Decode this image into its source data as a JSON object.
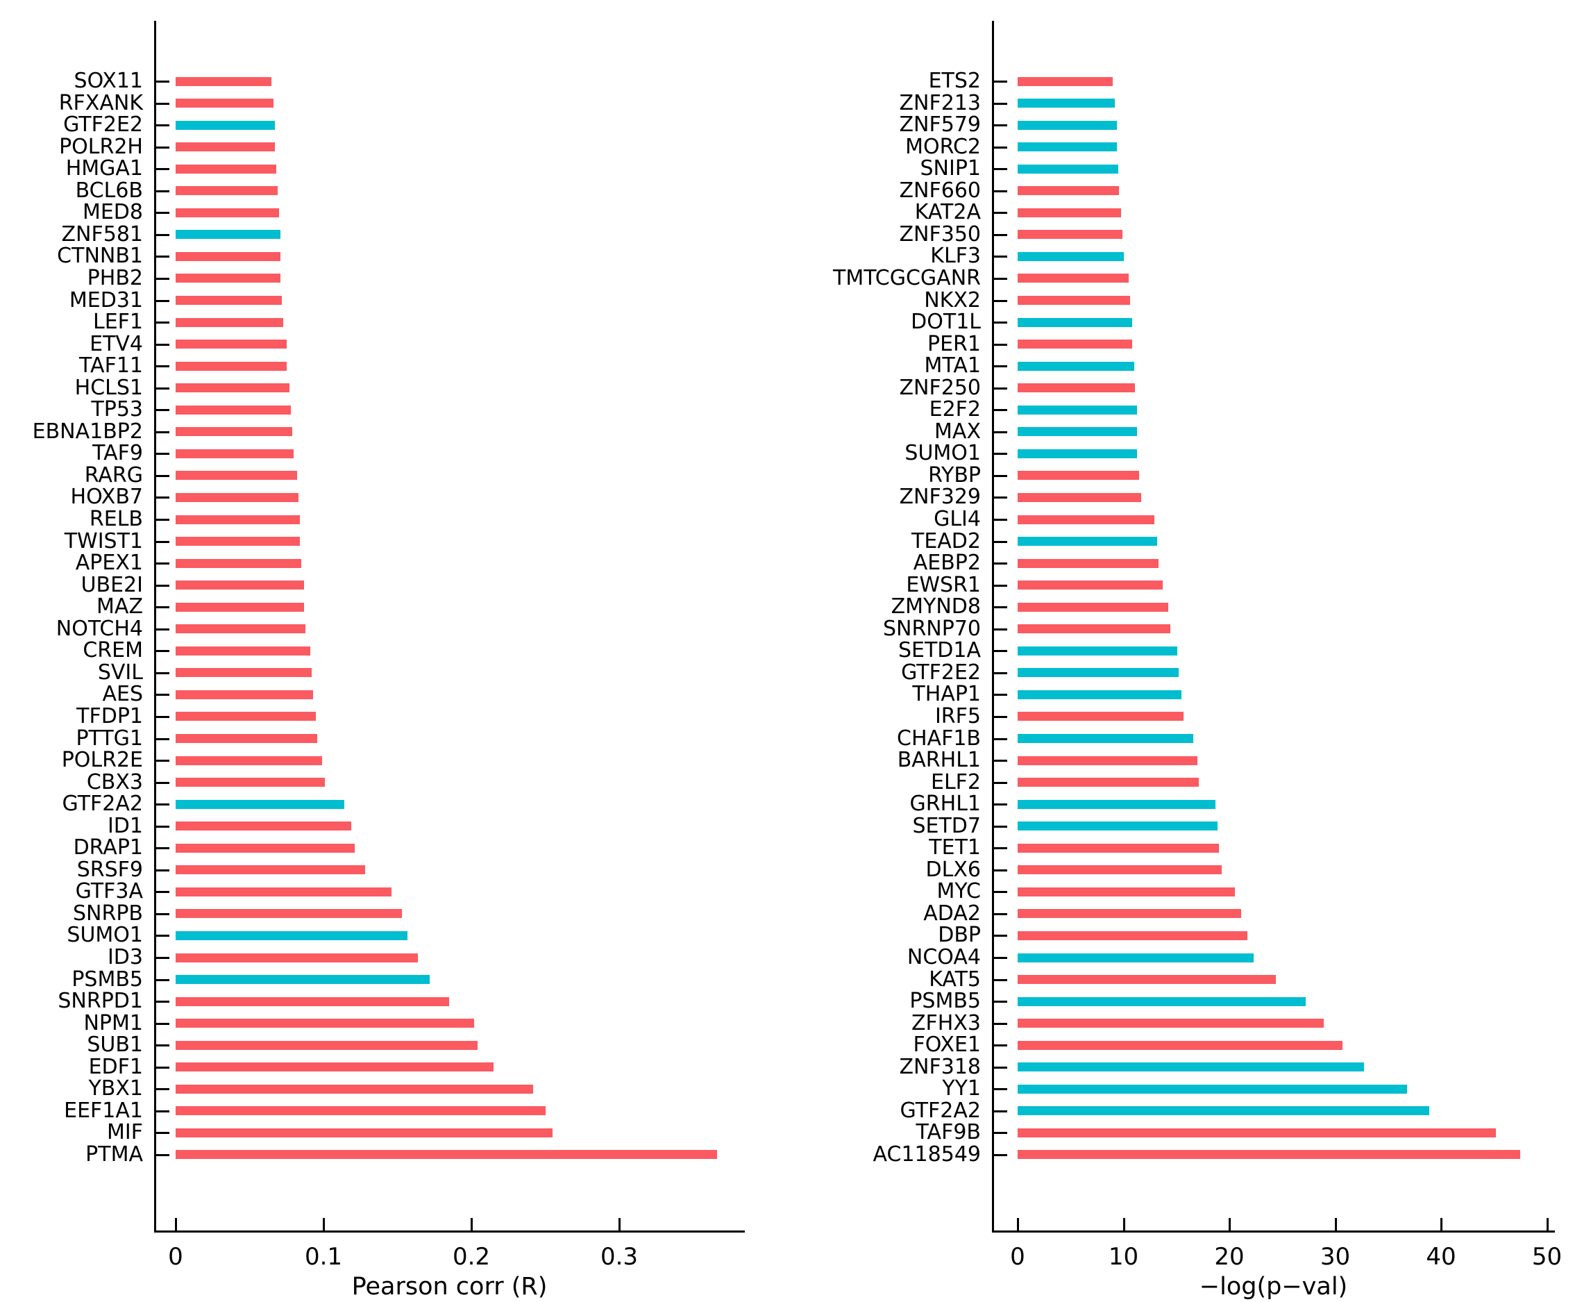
{
  "figure": {
    "background": "#ffffff",
    "palette": {
      "default_bar": "#FB5A61",
      "highlight_bar": "#00BDCF",
      "axis": "#000000",
      "text": "#000000"
    }
  },
  "chart_data": [
    {
      "type": "bar",
      "orientation": "horizontal",
      "title": "",
      "xlabel": "Pearson corr (R)",
      "ylabel": "",
      "grid": false,
      "legend": null,
      "xtick_labels": [
        "0",
        "0.1",
        "0.2",
        "0.3"
      ],
      "xtick_values": [
        0,
        0.1,
        0.2,
        0.3
      ],
      "xlim": [
        -0.015,
        0.385
      ],
      "categories": [
        "SOX11",
        "RFXANK",
        "GTF2E2",
        "POLR2H",
        "HMGA1",
        "BCL6B",
        "MED8",
        "ZNF581",
        "CTNNB1",
        "PHB2",
        "MED31",
        "LEF1",
        "ETV4",
        "TAF11",
        "HCLS1",
        "TP53",
        "EBNA1BP2",
        "TAF9",
        "RARG",
        "HOXB7",
        "RELB",
        "TWIST1",
        "APEX1",
        "UBE2I",
        "MAZ",
        "NOTCH4",
        "CREM",
        "SVIL",
        "AES",
        "TFDP1",
        "PTTG1",
        "POLR2E",
        "CBX3",
        "GTF2A2",
        "ID1",
        "DRAP1",
        "SRSF9",
        "GTF3A",
        "SNRPB",
        "SUMO1",
        "ID3",
        "PSMB5",
        "SNRPD1",
        "NPM1",
        "SUB1",
        "EDF1",
        "YBX1",
        "EEF1A1",
        "MIF",
        "PTMA"
      ],
      "values": [
        0.065,
        0.066,
        0.067,
        0.067,
        0.068,
        0.069,
        0.07,
        0.071,
        0.071,
        0.071,
        0.072,
        0.073,
        0.075,
        0.075,
        0.077,
        0.078,
        0.079,
        0.08,
        0.082,
        0.083,
        0.084,
        0.084,
        0.085,
        0.087,
        0.087,
        0.088,
        0.091,
        0.092,
        0.093,
        0.095,
        0.096,
        0.099,
        0.101,
        0.114,
        0.119,
        0.121,
        0.128,
        0.146,
        0.153,
        0.157,
        0.164,
        0.172,
        0.185,
        0.202,
        0.204,
        0.215,
        0.242,
        0.25,
        0.255,
        0.366
      ],
      "bar_colors": [
        "red",
        "red",
        "cyan",
        "red",
        "red",
        "red",
        "red",
        "cyan",
        "red",
        "red",
        "red",
        "red",
        "red",
        "red",
        "red",
        "red",
        "red",
        "red",
        "red",
        "red",
        "red",
        "red",
        "red",
        "red",
        "red",
        "red",
        "red",
        "red",
        "red",
        "red",
        "red",
        "red",
        "red",
        "cyan",
        "red",
        "red",
        "red",
        "red",
        "red",
        "cyan",
        "red",
        "cyan",
        "red",
        "red",
        "red",
        "red",
        "red",
        "red",
        "red",
        "red"
      ]
    },
    {
      "type": "bar",
      "orientation": "horizontal",
      "title": "",
      "xlabel": "−log(p−val)",
      "ylabel": "",
      "grid": false,
      "legend": null,
      "xtick_labels": [
        "0",
        "10",
        "20",
        "30",
        "40",
        "50"
      ],
      "xtick_values": [
        0,
        10,
        20,
        30,
        40,
        50
      ],
      "xlim": [
        -2.4,
        51
      ],
      "categories": [
        "ETS2",
        "ZNF213",
        "ZNF579",
        "MORC2",
        "SNIP1",
        "ZNF660",
        "KAT2A",
        "ZNF350",
        "KLF3",
        "TMTCGCGANR",
        "NKX2",
        "DOT1L",
        "PER1",
        "MTA1",
        "ZNF250",
        "E2F2",
        "MAX",
        "SUMO1",
        "RYBP",
        "ZNF329",
        "GLI4",
        "TEAD2",
        "AEBP2",
        "EWSR1",
        "ZMYND8",
        "SNRNP70",
        "SETD1A",
        "GTF2E2",
        "THAP1",
        "IRF5",
        "CHAF1B",
        "BARHL1",
        "ELF2",
        "GRHL1",
        "SETD7",
        "TET1",
        "DLX6",
        "MYC",
        "ADA2",
        "DBP",
        "NCOA4",
        "KAT5",
        "PSMB5",
        "ZFHX3",
        "FOXE1",
        "ZNF318",
        "YY1",
        "GTF2A2",
        "TAF9B",
        "AC118549"
      ],
      "values": [
        9.0,
        9.2,
        9.4,
        9.4,
        9.5,
        9.6,
        9.8,
        9.9,
        10.0,
        10.5,
        10.6,
        10.8,
        10.8,
        11.0,
        11.1,
        11.3,
        11.3,
        11.3,
        11.5,
        11.7,
        12.9,
        13.2,
        13.3,
        13.7,
        14.2,
        14.4,
        15.1,
        15.2,
        15.5,
        15.7,
        16.6,
        17.0,
        17.1,
        18.7,
        18.9,
        19.0,
        19.3,
        20.5,
        21.1,
        21.7,
        22.3,
        24.4,
        27.2,
        28.9,
        30.7,
        32.7,
        36.8,
        38.9,
        45.2,
        47.5
      ],
      "bar_colors": [
        "red",
        "cyan",
        "cyan",
        "cyan",
        "cyan",
        "red",
        "red",
        "red",
        "cyan",
        "red",
        "red",
        "cyan",
        "red",
        "cyan",
        "red",
        "cyan",
        "cyan",
        "cyan",
        "red",
        "red",
        "red",
        "cyan",
        "red",
        "red",
        "red",
        "red",
        "cyan",
        "cyan",
        "cyan",
        "red",
        "cyan",
        "red",
        "red",
        "cyan",
        "cyan",
        "red",
        "red",
        "red",
        "red",
        "red",
        "cyan",
        "red",
        "cyan",
        "red",
        "red",
        "cyan",
        "cyan",
        "cyan",
        "red",
        "red"
      ]
    }
  ]
}
